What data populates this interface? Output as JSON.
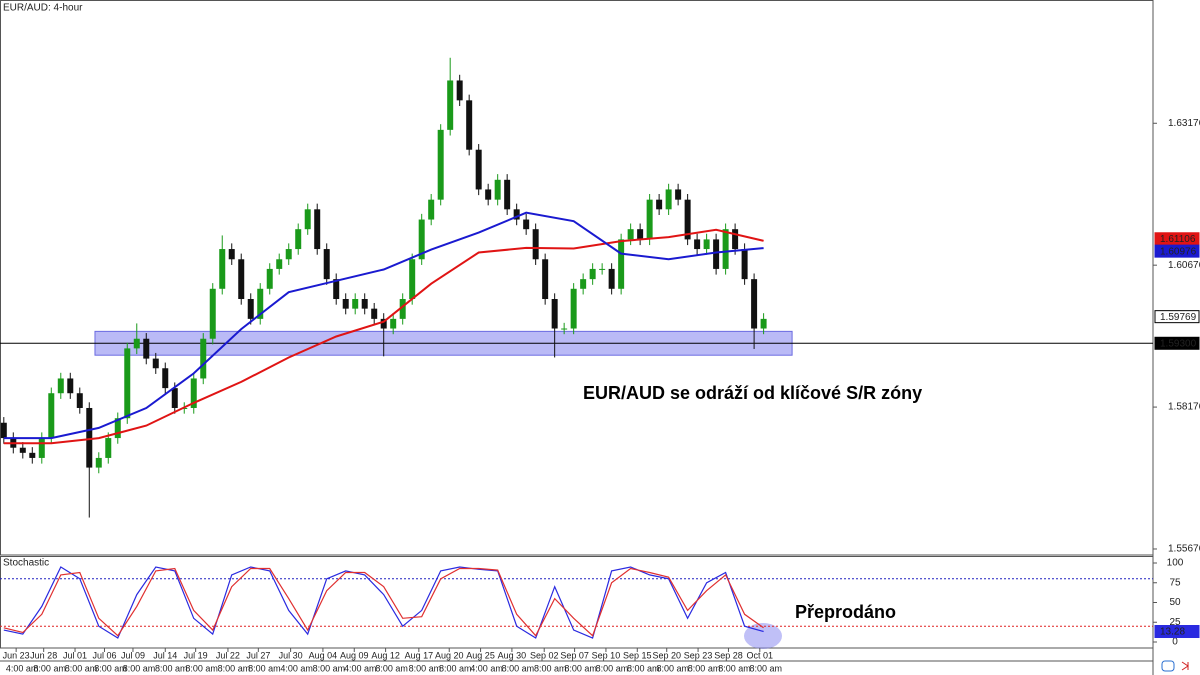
{
  "chart_data": [
    {
      "type": "candlestick",
      "title": "EUR/AUD: 4-hour",
      "annotation": "EUR/AUD se odráží od klíčové S/R zóny",
      "up_color": "#1a9a1a",
      "down_color": "#111111",
      "xlim": [
        -0.4,
        121
      ],
      "ylim": [
        1.5557,
        1.6533
      ],
      "yticks": [
        1.55676,
        1.58176,
        1.60676,
        1.63176
      ],
      "xticks": [
        {
          "value": 1.3,
          "label": "Jun 23"
        },
        {
          "value": 4.2,
          "label": "Jun 28"
        },
        {
          "value": 7.5,
          "label": "Jul 01"
        },
        {
          "value": 10.6,
          "label": "Jul 06"
        },
        {
          "value": 13.6,
          "label": "Jul 09"
        },
        {
          "value": 17,
          "label": "Jul 14"
        },
        {
          "value": 20.2,
          "label": "Jul 19"
        },
        {
          "value": 23.6,
          "label": "Jul 22"
        },
        {
          "value": 26.8,
          "label": "Jul 27"
        },
        {
          "value": 30.2,
          "label": "Jul 30"
        },
        {
          "value": 33.6,
          "label": "Aug 04"
        },
        {
          "value": 36.9,
          "label": "Aug 09"
        },
        {
          "value": 40.2,
          "label": "Aug 12"
        },
        {
          "value": 43.7,
          "label": "Aug 17"
        },
        {
          "value": 46.9,
          "label": "Aug 20"
        },
        {
          "value": 50.2,
          "label": "Aug 25"
        },
        {
          "value": 53.5,
          "label": "Aug 30"
        },
        {
          "value": 56.9,
          "label": "Sep 02"
        },
        {
          "value": 60.1,
          "label": "Sep 07"
        },
        {
          "value": 63.4,
          "label": "Sep 10"
        },
        {
          "value": 66.7,
          "label": "Sep 15"
        },
        {
          "value": 69.8,
          "label": "Sep 20"
        },
        {
          "value": 73.1,
          "label": "Sep 23"
        },
        {
          "value": 76.3,
          "label": "Sep 28"
        },
        {
          "value": 79.6,
          "label": "Oct 01"
        }
      ],
      "time_labels": [
        "4:00 am",
        "8:00 am",
        "8:00 am",
        "8:00 am",
        "8:00 am",
        "8:00 am",
        "8:00 am",
        "8:00 am",
        "8:00 am",
        "4:00 am",
        "8:00 am",
        "4:00 am",
        "8:00 am",
        "8:00 am",
        "8:00 am",
        "4:00 am",
        "8:00 am",
        "8:00 am",
        "8:00 am",
        "8:00 am",
        "8:00 am",
        "8:00 am",
        "8:00 am",
        "8:00 am",
        "8:00 am"
      ],
      "open": [
        1.579,
        1.5763,
        1.5746,
        1.5737,
        1.5728,
        1.5763,
        1.5842,
        1.5868,
        1.5842,
        1.5816,
        1.5711,
        1.5728,
        1.5763,
        1.5798,
        1.5921,
        1.5938,
        1.5903,
        1.5886,
        1.5851,
        1.5816,
        1.5816,
        1.5868,
        1.5938,
        1.6026,
        1.6096,
        1.6078,
        1.6008,
        1.5973,
        1.6026,
        1.6061,
        1.6078,
        1.6096,
        1.6131,
        1.6166,
        1.6096,
        1.6043,
        1.6008,
        1.5991,
        1.6008,
        1.5991,
        1.5973,
        1.5956,
        1.5973,
        1.6008,
        1.6078,
        1.6148,
        1.6183,
        1.6306,
        1.6393,
        1.6358,
        1.6271,
        1.6201,
        1.6183,
        1.6218,
        1.6166,
        1.6148,
        1.6131,
        1.6078,
        1.6008,
        1.5956,
        1.5956,
        1.6026,
        1.6043,
        1.6061,
        1.6061,
        1.6026,
        1.6113,
        1.6131,
        1.6113,
        1.6183,
        1.6166,
        1.6201,
        1.6183,
        1.6113,
        1.6096,
        1.6113,
        1.6061,
        1.6131,
        1.6096,
        1.6043,
        1.5956
      ],
      "high": [
        1.58,
        1.5773,
        1.5756,
        1.5747,
        1.5773,
        1.5852,
        1.5878,
        1.5878,
        1.5852,
        1.5826,
        1.5738,
        1.5773,
        1.5808,
        1.5931,
        1.5965,
        1.5948,
        1.5913,
        1.5896,
        1.5861,
        1.5826,
        1.5878,
        1.5948,
        1.6036,
        1.612,
        1.6106,
        1.6088,
        1.6018,
        1.6036,
        1.6071,
        1.6088,
        1.6106,
        1.6141,
        1.6176,
        1.6176,
        1.6106,
        1.6053,
        1.6018,
        1.6018,
        1.6018,
        1.6001,
        1.5983,
        1.5983,
        1.6018,
        1.6088,
        1.6158,
        1.6193,
        1.6316,
        1.6433,
        1.6403,
        1.6368,
        1.6281,
        1.6211,
        1.6228,
        1.6228,
        1.6176,
        1.6158,
        1.6141,
        1.6088,
        1.6018,
        1.5966,
        1.6036,
        1.6053,
        1.6071,
        1.6071,
        1.6071,
        1.6123,
        1.6141,
        1.6141,
        1.6193,
        1.6193,
        1.6211,
        1.6211,
        1.6193,
        1.6123,
        1.6123,
        1.6123,
        1.6141,
        1.6141,
        1.6106,
        1.6053,
        1.5983
      ],
      "low": [
        1.5753,
        1.5736,
        1.5727,
        1.5718,
        1.5718,
        1.5753,
        1.5832,
        1.5832,
        1.5806,
        1.5623,
        1.5701,
        1.5718,
        1.5753,
        1.5788,
        1.5911,
        1.5893,
        1.5876,
        1.5841,
        1.5806,
        1.5806,
        1.5806,
        1.5858,
        1.5928,
        1.6016,
        1.6068,
        1.5998,
        1.5963,
        1.5963,
        1.6016,
        1.6051,
        1.6068,
        1.6086,
        1.6121,
        1.6086,
        1.6033,
        1.5998,
        1.5981,
        1.5981,
        1.5981,
        1.5963,
        1.5907,
        1.5946,
        1.5963,
        1.5998,
        1.6068,
        1.6138,
        1.6173,
        1.6296,
        1.6348,
        1.6261,
        1.6191,
        1.6173,
        1.6173,
        1.6156,
        1.6138,
        1.6121,
        1.6068,
        1.5998,
        1.5905,
        1.5946,
        1.5946,
        1.6016,
        1.6033,
        1.6051,
        1.6016,
        1.6016,
        1.6103,
        1.6103,
        1.6103,
        1.6156,
        1.6156,
        1.6173,
        1.6103,
        1.6086,
        1.6086,
        1.6051,
        1.6051,
        1.6086,
        1.6033,
        1.592,
        1.5946
      ],
      "close": [
        1.5763,
        1.5746,
        1.5737,
        1.5728,
        1.5763,
        1.5842,
        1.5868,
        1.5842,
        1.5816,
        1.5711,
        1.5728,
        1.5763,
        1.5798,
        1.5921,
        1.5938,
        1.5903,
        1.5886,
        1.5851,
        1.5816,
        1.5816,
        1.5868,
        1.5938,
        1.6026,
        1.6096,
        1.6078,
        1.6008,
        1.5973,
        1.6026,
        1.6061,
        1.6078,
        1.6096,
        1.6131,
        1.6166,
        1.6096,
        1.6043,
        1.6008,
        1.5991,
        1.6008,
        1.5991,
        1.5973,
        1.5956,
        1.5973,
        1.6008,
        1.6078,
        1.6148,
        1.6183,
        1.6306,
        1.6393,
        1.6358,
        1.6271,
        1.6201,
        1.6183,
        1.6218,
        1.6166,
        1.6148,
        1.6131,
        1.6078,
        1.6008,
        1.5956,
        1.5956,
        1.6026,
        1.6043,
        1.6061,
        1.6061,
        1.6026,
        1.6113,
        1.6131,
        1.6113,
        1.6183,
        1.6166,
        1.6201,
        1.6183,
        1.6113,
        1.6096,
        1.6113,
        1.6061,
        1.6131,
        1.6096,
        1.6043,
        1.5956,
        1.5973
      ],
      "series": [
        {
          "color": "#e01414",
          "x": [
            0,
            5,
            10,
            15,
            20,
            25,
            30,
            35,
            40,
            45,
            50,
            55,
            60,
            65,
            70,
            75,
            80
          ],
          "values": [
            1.5754,
            1.5754,
            1.5763,
            1.5785,
            1.5825,
            1.5862,
            1.5905,
            1.5942,
            1.5968,
            1.6035,
            1.609,
            1.6098,
            1.6097,
            1.611,
            1.6117,
            1.613,
            1.61106
          ]
        },
        {
          "color": "#1a1ad0",
          "x": [
            0,
            5,
            10,
            15,
            20,
            25,
            30,
            35,
            40,
            45,
            50,
            55,
            60,
            65,
            70,
            75,
            80
          ],
          "values": [
            1.5763,
            1.5763,
            1.5781,
            1.5816,
            1.5877,
            1.5955,
            1.602,
            1.604,
            1.606,
            1.6095,
            1.6125,
            1.616,
            1.6145,
            1.6088,
            1.6078,
            1.609,
            1.60976
          ]
        }
      ],
      "last_price": 1.59769,
      "level": {
        "value": 1.593,
        "label": "1.59300"
      },
      "sr_zone": {
        "x": [
          9.6,
          83
        ],
        "y": [
          1.5909,
          1.5951
        ],
        "color": "#8c8cf0"
      }
    },
    {
      "type": "line",
      "title": "Stochastic",
      "annotation": "Přeprodáno",
      "xlim": [
        -0.4,
        121
      ],
      "ylim": [
        -7.6,
        107.6
      ],
      "yticks": [
        0,
        25,
        50,
        75,
        100
      ],
      "levels": [
        {
          "value": 20,
          "color": "#e02020"
        },
        {
          "value": 80,
          "color": "#2020c0"
        }
      ],
      "series": [
        {
          "color": "#2a2ae0",
          "x": [
            0,
            2,
            4,
            6,
            8,
            10,
            12,
            14,
            16,
            18,
            20,
            22,
            24,
            26,
            28,
            30,
            32,
            34,
            36,
            38,
            40,
            42,
            44,
            46,
            48,
            50,
            52,
            54,
            56,
            58,
            60,
            62,
            64,
            66,
            68,
            70,
            72,
            74,
            76,
            78,
            80
          ],
          "values": [
            15,
            10,
            45,
            95,
            80,
            20,
            5,
            60,
            95,
            90,
            30,
            10,
            85,
            95,
            90,
            40,
            10,
            80,
            90,
            85,
            60,
            20,
            40,
            90,
            95,
            92,
            90,
            20,
            5,
            70,
            15,
            5,
            90,
            95,
            85,
            80,
            30,
            75,
            88,
            20,
            13.28
          ]
        },
        {
          "color": "#e03030",
          "x": [
            0,
            2,
            4,
            6,
            8,
            10,
            12,
            14,
            16,
            18,
            20,
            22,
            24,
            26,
            28,
            30,
            32,
            34,
            36,
            38,
            40,
            42,
            44,
            46,
            48,
            50,
            52,
            54,
            56,
            58,
            60,
            62,
            64,
            66,
            68,
            70,
            72,
            74,
            76,
            78,
            80
          ],
          "values": [
            18,
            12,
            35,
            85,
            88,
            30,
            8,
            45,
            90,
            93,
            40,
            15,
            70,
            93,
            93,
            55,
            15,
            65,
            88,
            88,
            70,
            30,
            32,
            80,
            93,
            93,
            91,
            35,
            8,
            55,
            30,
            8,
            75,
            93,
            88,
            82,
            40,
            65,
            85,
            35,
            18
          ]
        }
      ]
    }
  ]
}
